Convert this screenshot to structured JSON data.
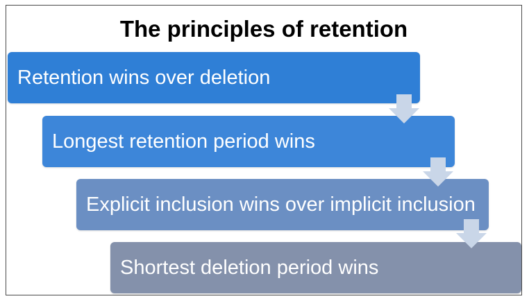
{
  "title": "The principles of retention",
  "steps": [
    {
      "label": "Retention wins over deletion",
      "color": "#2f7fd6"
    },
    {
      "label": "Longest retention period wins",
      "color": "#3d86d9"
    },
    {
      "label": "Explicit inclusion wins over implicit inclusion",
      "color": "#6b8fc3"
    },
    {
      "label": "Shortest deletion period wins",
      "color": "#8491ab"
    }
  ],
  "connector_icon": "down-arrow-icon",
  "connector_color": "#c9d6e8"
}
